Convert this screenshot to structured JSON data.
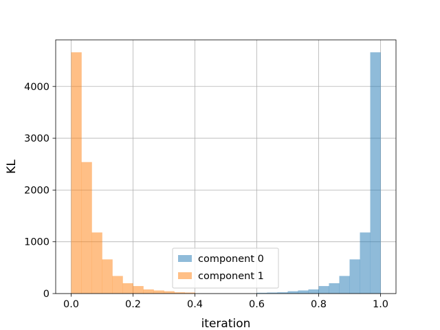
{
  "chart_data": {
    "type": "bar",
    "title": "",
    "xlabel": "iteration",
    "ylabel": "KL",
    "xlim": [
      -0.05,
      1.05
    ],
    "ylim": [
      0,
      4900
    ],
    "xticks": [
      0.0,
      0.2,
      0.4,
      0.6,
      0.8,
      1.0
    ],
    "xtick_labels": [
      "0.0",
      "0.2",
      "0.4",
      "0.6",
      "0.8",
      "1.0"
    ],
    "yticks": [
      0,
      1000,
      2000,
      3000,
      4000
    ],
    "ytick_labels": [
      "0",
      "1000",
      "2000",
      "3000",
      "4000"
    ],
    "grid": true,
    "legend_position": "lower center",
    "bin_width": 0.0333,
    "series": [
      {
        "name": "component 0",
        "color": "#1f77b4",
        "opacity": 0.5,
        "bins": [
          {
            "x0": 0.6,
            "value": 15
          },
          {
            "x0": 0.6333,
            "value": 20
          },
          {
            "x0": 0.6667,
            "value": 25
          },
          {
            "x0": 0.7,
            "value": 45
          },
          {
            "x0": 0.7333,
            "value": 60
          },
          {
            "x0": 0.7667,
            "value": 80
          },
          {
            "x0": 0.8,
            "value": 145
          },
          {
            "x0": 0.8333,
            "value": 200
          },
          {
            "x0": 0.8667,
            "value": 340
          },
          {
            "x0": 0.9,
            "value": 660
          },
          {
            "x0": 0.9333,
            "value": 1180
          },
          {
            "x0": 0.9667,
            "value": 4660
          }
        ],
        "bins_note": ""
      },
      {
        "name": "component 1",
        "color": "#ff7f0e",
        "opacity": 0.5,
        "bins": [
          {
            "x0": 0.0,
            "value": 4660
          },
          {
            "x0": 0.0333,
            "value": 2540
          },
          {
            "x0": 0.0667,
            "value": 1180
          },
          {
            "x0": 0.1,
            "value": 660
          },
          {
            "x0": 0.1333,
            "value": 340
          },
          {
            "x0": 0.1667,
            "value": 200
          },
          {
            "x0": 0.2,
            "value": 145
          },
          {
            "x0": 0.2333,
            "value": 80
          },
          {
            "x0": 0.2667,
            "value": 60
          },
          {
            "x0": 0.3,
            "value": 45
          },
          {
            "x0": 0.3333,
            "value": 25
          },
          {
            "x0": 0.3667,
            "value": 20
          }
        ]
      }
    ]
  }
}
